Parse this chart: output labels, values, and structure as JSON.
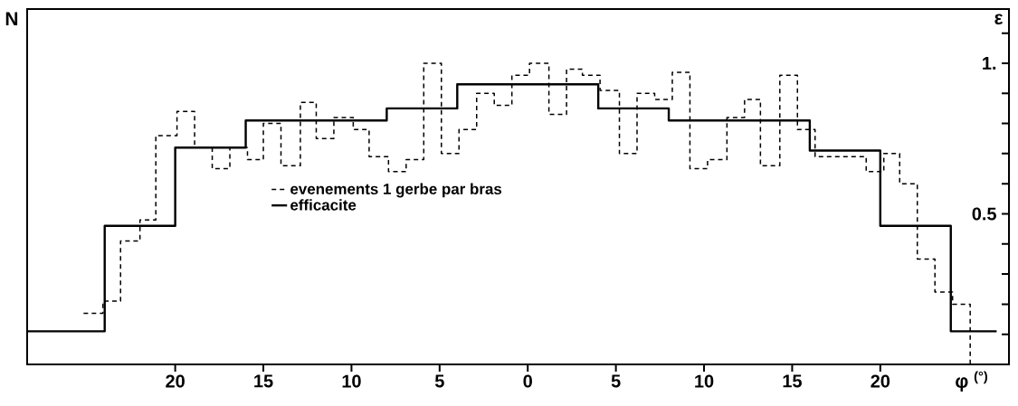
{
  "chart_data": {
    "type": "step",
    "xlabel": "φ $^{(°)}$",
    "ylabel": "N",
    "y2label": "ε",
    "xlim": [
      -28.4,
      27.3
    ],
    "xticks": [
      {
        "value": -20,
        "label": "20"
      },
      {
        "value": -15,
        "label": "15"
      },
      {
        "value": -10,
        "label": "10"
      },
      {
        "value": -5,
        "label": "5"
      },
      0,
      5,
      10,
      15,
      20
    ],
    "y2lim": [
      0,
      1.18
    ],
    "y2ticks": [
      {
        "value": 0.1,
        "label": null
      },
      {
        "value": 0.2,
        "label": null
      },
      {
        "value": 0.3,
        "label": null
      },
      {
        "value": 0.4,
        "label": null
      },
      0.5,
      {
        "value": 0.6,
        "label": null
      },
      {
        "value": 0.7,
        "label": null
      },
      {
        "value": 0.8,
        "label": null
      },
      {
        "value": 0.9,
        "label": null
      },
      {
        "value": 1,
        "label": "1."
      },
      {
        "value": 1.1,
        "label": null
      }
    ],
    "legend": "center",
    "series": [
      {
        "name": "evenements 1 gerbe par bras",
        "axis": "y2",
        "color": "#000000",
        "line_style": "dashed",
        "x": [
          -25.2,
          -24.1,
          -23.1,
          -22.0,
          -21.1,
          -19.9,
          -18.9,
          -17.9,
          -16.9,
          -15.9,
          -15.0,
          -14.0,
          -12.9,
          -12.0,
          -11.0,
          -9.9,
          -9.0,
          -7.9,
          -6.9,
          -5.9,
          -4.9,
          -3.9,
          -2.9,
          -1.9,
          -0.9,
          0.1,
          1.2,
          2.2,
          3.1,
          4.1,
          5.2,
          6.2,
          7.2,
          8.2,
          9.2,
          10.2,
          11.3,
          12.3,
          13.2,
          14.3,
          15.3,
          16.3,
          19.2,
          20.2,
          21.1,
          22.1,
          23.1,
          24.1,
          25.1
        ],
        "values": [
          0.17,
          0.21,
          0.41,
          0.48,
          0.76,
          0.84,
          0.72,
          0.65,
          0.72,
          0.68,
          0.8,
          0.66,
          0.87,
          0.75,
          0.82,
          0.78,
          0.69,
          0.64,
          0.68,
          1.0,
          0.7,
          0.78,
          0.9,
          0.86,
          0.96,
          1.0,
          0.83,
          0.98,
          0.96,
          0.91,
          0.7,
          0.9,
          0.88,
          0.97,
          0.65,
          0.68,
          0.82,
          0.88,
          0.66,
          0.96,
          0.78,
          0.69,
          0.64,
          0.7,
          0.6,
          0.35,
          0.24,
          0.2,
          0
        ]
      },
      {
        "name": "efficacite",
        "axis": "y2",
        "color": "#000000",
        "line_style": "solid",
        "x": [
          -28.4,
          -24,
          -20,
          -16,
          -8,
          -4,
          4,
          8,
          16,
          20,
          24,
          26.6
        ],
        "values": [
          0.11,
          0.46,
          0.72,
          0.81,
          0.85,
          0.93,
          0.85,
          0.81,
          0.71,
          0.46,
          0.11,
          0.11
        ]
      }
    ]
  }
}
